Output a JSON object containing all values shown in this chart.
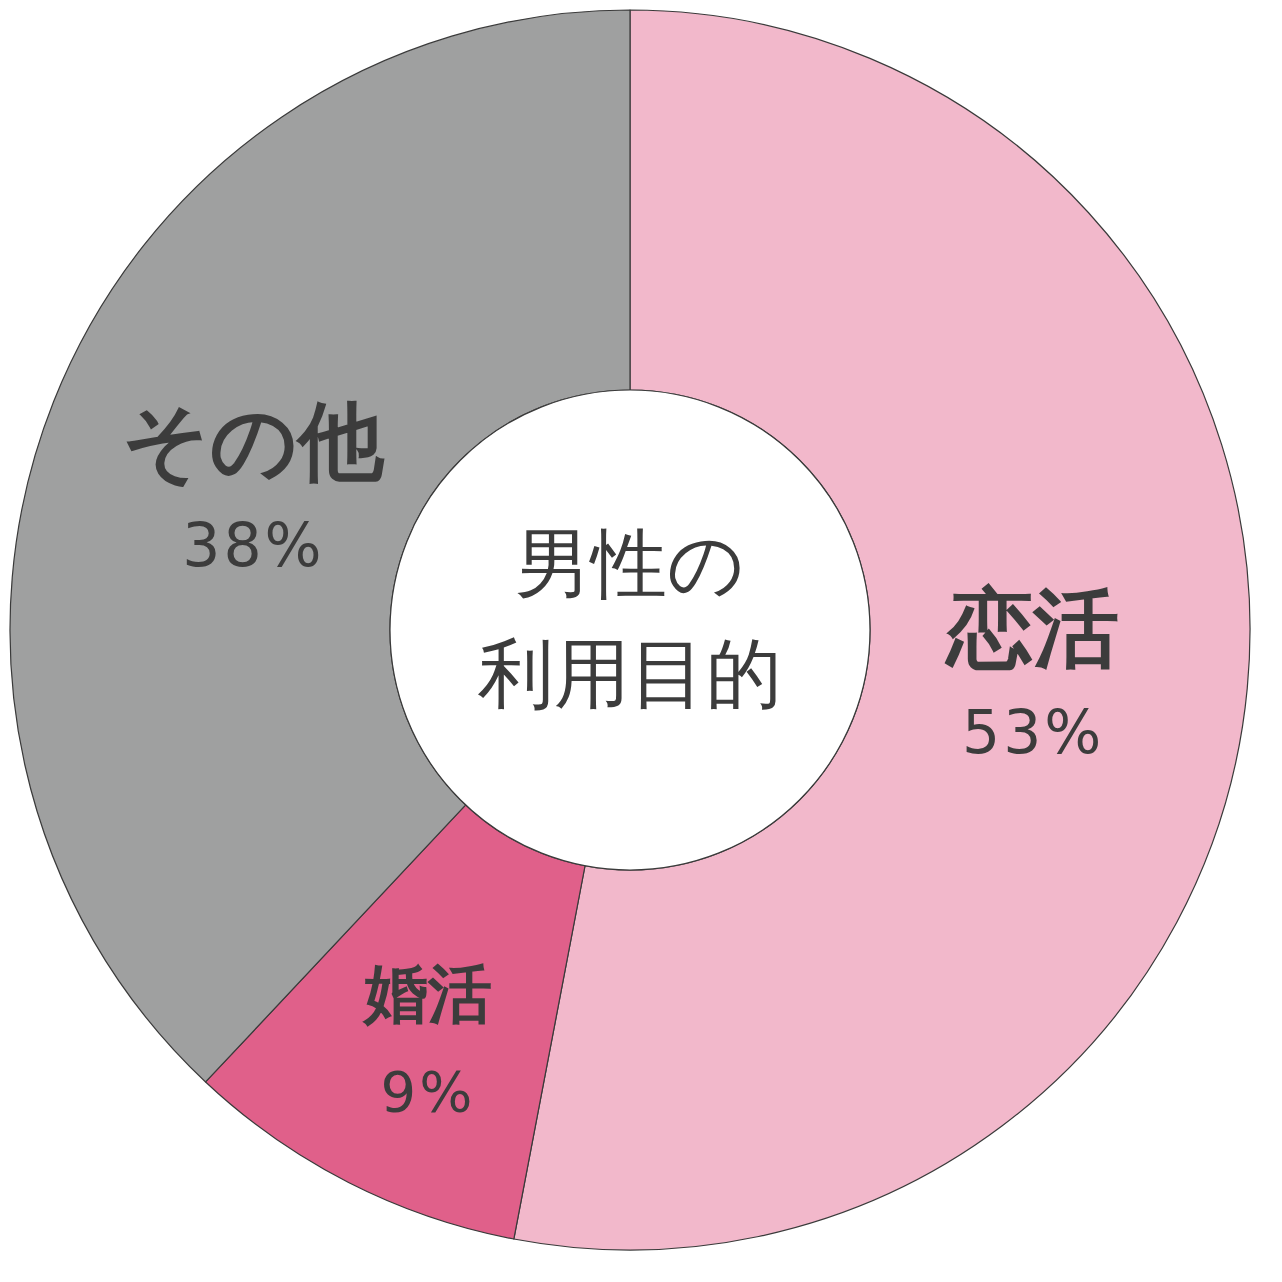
{
  "chart_data": {
    "type": "donut",
    "title": "男性の利用目的",
    "categories": [
      "恋活",
      "婚活",
      "その他"
    ],
    "values": [
      53,
      9,
      38
    ],
    "value_labels": [
      "53%",
      "9%",
      "38%"
    ],
    "colors": [
      "#f2b8cb",
      "#e0608a",
      "#9fa0a0"
    ]
  }
}
